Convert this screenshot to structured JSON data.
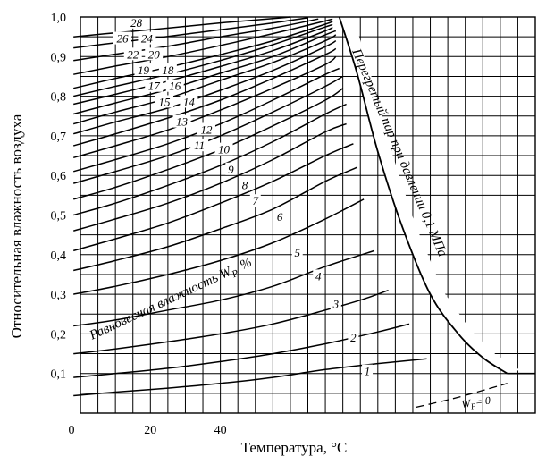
{
  "chart_data": {
    "type": "line",
    "title": "",
    "xlabel": "Температура, °C",
    "ylabel": "Относительная влажность воздуха",
    "xlim": [
      0,
      130
    ],
    "ylim": [
      0,
      1.0
    ],
    "x_tick_labels": [
      "0",
      "20",
      "40"
    ],
    "y_tick_labels": [
      "0,1",
      "0,2",
      "0,3",
      "0,4",
      "0,5",
      "0,6",
      "0,7",
      "0,8",
      "0,9",
      "1,0"
    ],
    "grid": true,
    "band_label": "Равновесная влажность W",
    "band_label_sub": "P",
    "band_label_unit": "%",
    "boundary_label": "Перегретый пар при давлении 0,1 МПа",
    "zero_curve_label": "W",
    "zero_curve_label_sub": "P",
    "zero_curve_label_value": "= 0",
    "saturation_boundary": {
      "x": [
        74,
        79,
        85,
        92,
        100,
        108,
        115,
        122
      ],
      "y": [
        1.0,
        0.86,
        0.66,
        0.47,
        0.3,
        0.2,
        0.14,
        0.1
      ]
    },
    "series": [
      {
        "name": "1",
        "values": [
          [
            -2,
            0.044
          ],
          [
            10,
            0.053
          ],
          [
            25,
            0.063
          ],
          [
            40,
            0.075
          ],
          [
            55,
            0.09
          ],
          [
            70,
            0.11
          ],
          [
            85,
            0.125
          ],
          [
            99,
            0.137
          ]
        ]
      },
      {
        "name": "2",
        "values": [
          [
            -2,
            0.09
          ],
          [
            10,
            0.1
          ],
          [
            25,
            0.113
          ],
          [
            40,
            0.13
          ],
          [
            55,
            0.15
          ],
          [
            70,
            0.175
          ],
          [
            85,
            0.205
          ],
          [
            94,
            0.225
          ]
        ]
      },
      {
        "name": "3",
        "values": [
          [
            -2,
            0.15
          ],
          [
            10,
            0.162
          ],
          [
            25,
            0.18
          ],
          [
            40,
            0.2
          ],
          [
            55,
            0.225
          ],
          [
            70,
            0.26
          ],
          [
            80,
            0.285
          ],
          [
            88,
            0.31
          ]
        ]
      },
      {
        "name": "4",
        "values": [
          [
            -2,
            0.22
          ],
          [
            10,
            0.235
          ],
          [
            25,
            0.26
          ],
          [
            40,
            0.285
          ],
          [
            55,
            0.32
          ],
          [
            70,
            0.37
          ],
          [
            84,
            0.41
          ]
        ]
      },
      {
        "name": "5",
        "values": [
          [
            -2,
            0.3
          ],
          [
            10,
            0.32
          ],
          [
            25,
            0.35
          ],
          [
            40,
            0.385
          ],
          [
            55,
            0.43
          ],
          [
            70,
            0.49
          ],
          [
            81,
            0.54
          ]
        ]
      },
      {
        "name": "6",
        "values": [
          [
            -2,
            0.36
          ],
          [
            10,
            0.385
          ],
          [
            25,
            0.42
          ],
          [
            40,
            0.465
          ],
          [
            55,
            0.515
          ],
          [
            70,
            0.585
          ],
          [
            79,
            0.62
          ]
        ]
      },
      {
        "name": "7",
        "values": [
          [
            -2,
            0.41
          ],
          [
            10,
            0.44
          ],
          [
            25,
            0.48
          ],
          [
            40,
            0.53
          ],
          [
            55,
            0.585
          ],
          [
            70,
            0.65
          ],
          [
            78,
            0.68
          ]
        ]
      },
      {
        "name": "8",
        "values": [
          [
            -2,
            0.46
          ],
          [
            10,
            0.49
          ],
          [
            25,
            0.53
          ],
          [
            40,
            0.58
          ],
          [
            55,
            0.64
          ],
          [
            70,
            0.71
          ],
          [
            76,
            0.73
          ]
        ]
      },
      {
        "name": "9",
        "values": [
          [
            -2,
            0.5
          ],
          [
            10,
            0.53
          ],
          [
            25,
            0.575
          ],
          [
            40,
            0.625
          ],
          [
            55,
            0.685
          ],
          [
            70,
            0.755
          ],
          [
            76,
            0.78
          ]
        ]
      },
      {
        "name": "10",
        "values": [
          [
            -2,
            0.54
          ],
          [
            10,
            0.57
          ],
          [
            25,
            0.615
          ],
          [
            40,
            0.665
          ],
          [
            55,
            0.725
          ],
          [
            70,
            0.79
          ],
          [
            75,
            0.82
          ]
        ]
      },
      {
        "name": "11",
        "values": [
          [
            -2,
            0.58
          ],
          [
            10,
            0.61
          ],
          [
            25,
            0.65
          ],
          [
            40,
            0.7
          ],
          [
            55,
            0.76
          ],
          [
            70,
            0.825
          ],
          [
            75,
            0.85
          ]
        ]
      },
      {
        "name": "12",
        "values": [
          [
            -2,
            0.61
          ],
          [
            10,
            0.64
          ],
          [
            25,
            0.68
          ],
          [
            40,
            0.73
          ],
          [
            55,
            0.79
          ],
          [
            70,
            0.855
          ],
          [
            74,
            0.87
          ]
        ]
      },
      {
        "name": "13",
        "values": [
          [
            -2,
            0.645
          ],
          [
            10,
            0.675
          ],
          [
            25,
            0.715
          ],
          [
            40,
            0.765
          ],
          [
            55,
            0.82
          ],
          [
            70,
            0.88
          ],
          [
            73,
            0.9
          ]
        ]
      },
      {
        "name": "14",
        "values": [
          [
            -2,
            0.675
          ],
          [
            10,
            0.705
          ],
          [
            25,
            0.745
          ],
          [
            40,
            0.79
          ],
          [
            55,
            0.845
          ],
          [
            70,
            0.905
          ],
          [
            73,
            0.92
          ]
        ]
      },
      {
        "name": "15",
        "values": [
          [
            -2,
            0.705
          ],
          [
            10,
            0.735
          ],
          [
            25,
            0.77
          ],
          [
            40,
            0.815
          ],
          [
            55,
            0.865
          ],
          [
            70,
            0.925
          ],
          [
            73,
            0.94
          ]
        ]
      },
      {
        "name": "16",
        "values": [
          [
            -2,
            0.73
          ],
          [
            10,
            0.76
          ],
          [
            25,
            0.795
          ],
          [
            40,
            0.84
          ],
          [
            55,
            0.885
          ],
          [
            70,
            0.94
          ],
          [
            73,
            0.955
          ]
        ]
      },
      {
        "name": "17",
        "values": [
          [
            -2,
            0.755
          ],
          [
            10,
            0.783
          ],
          [
            25,
            0.817
          ],
          [
            40,
            0.858
          ],
          [
            55,
            0.9
          ],
          [
            70,
            0.955
          ],
          [
            73,
            0.965
          ]
        ]
      },
      {
        "name": "18",
        "values": [
          [
            -2,
            0.78
          ],
          [
            10,
            0.805
          ],
          [
            25,
            0.838
          ],
          [
            40,
            0.875
          ],
          [
            55,
            0.915
          ],
          [
            70,
            0.965
          ],
          [
            72,
            0.975
          ]
        ]
      },
      {
        "name": "19",
        "values": [
          [
            -2,
            0.8
          ],
          [
            10,
            0.825
          ],
          [
            25,
            0.855
          ],
          [
            40,
            0.89
          ],
          [
            55,
            0.93
          ],
          [
            70,
            0.975
          ],
          [
            72,
            0.98
          ]
        ]
      },
      {
        "name": "20",
        "values": [
          [
            -2,
            0.82
          ],
          [
            10,
            0.845
          ],
          [
            25,
            0.873
          ],
          [
            40,
            0.905
          ],
          [
            55,
            0.94
          ],
          [
            70,
            0.982
          ],
          [
            72,
            0.99
          ]
        ]
      },
      {
        "name": "22",
        "values": [
          [
            -2,
            0.855
          ],
          [
            10,
            0.876
          ],
          [
            25,
            0.9
          ],
          [
            40,
            0.928
          ],
          [
            55,
            0.958
          ],
          [
            70,
            0.99
          ],
          [
            72,
            0.995
          ]
        ]
      },
      {
        "name": "24",
        "values": [
          [
            -2,
            0.89
          ],
          [
            10,
            0.906
          ],
          [
            25,
            0.926
          ],
          [
            40,
            0.95
          ],
          [
            55,
            0.972
          ],
          [
            68,
            0.995
          ]
        ]
      },
      {
        "name": "26",
        "values": [
          [
            -2,
            0.922
          ],
          [
            10,
            0.935
          ],
          [
            25,
            0.951
          ],
          [
            40,
            0.968
          ],
          [
            55,
            0.985
          ],
          [
            65,
            0.998
          ]
        ]
      },
      {
        "name": "28",
        "values": [
          [
            -2,
            0.95
          ],
          [
            10,
            0.96
          ],
          [
            25,
            0.972
          ],
          [
            40,
            0.985
          ],
          [
            55,
            0.996
          ],
          [
            60,
            1.0
          ]
        ]
      },
      {
        "name": "0",
        "values": [
          [
            96,
            0.015
          ],
          [
            108,
            0.04
          ],
          [
            122,
            0.075
          ]
        ]
      }
    ]
  }
}
